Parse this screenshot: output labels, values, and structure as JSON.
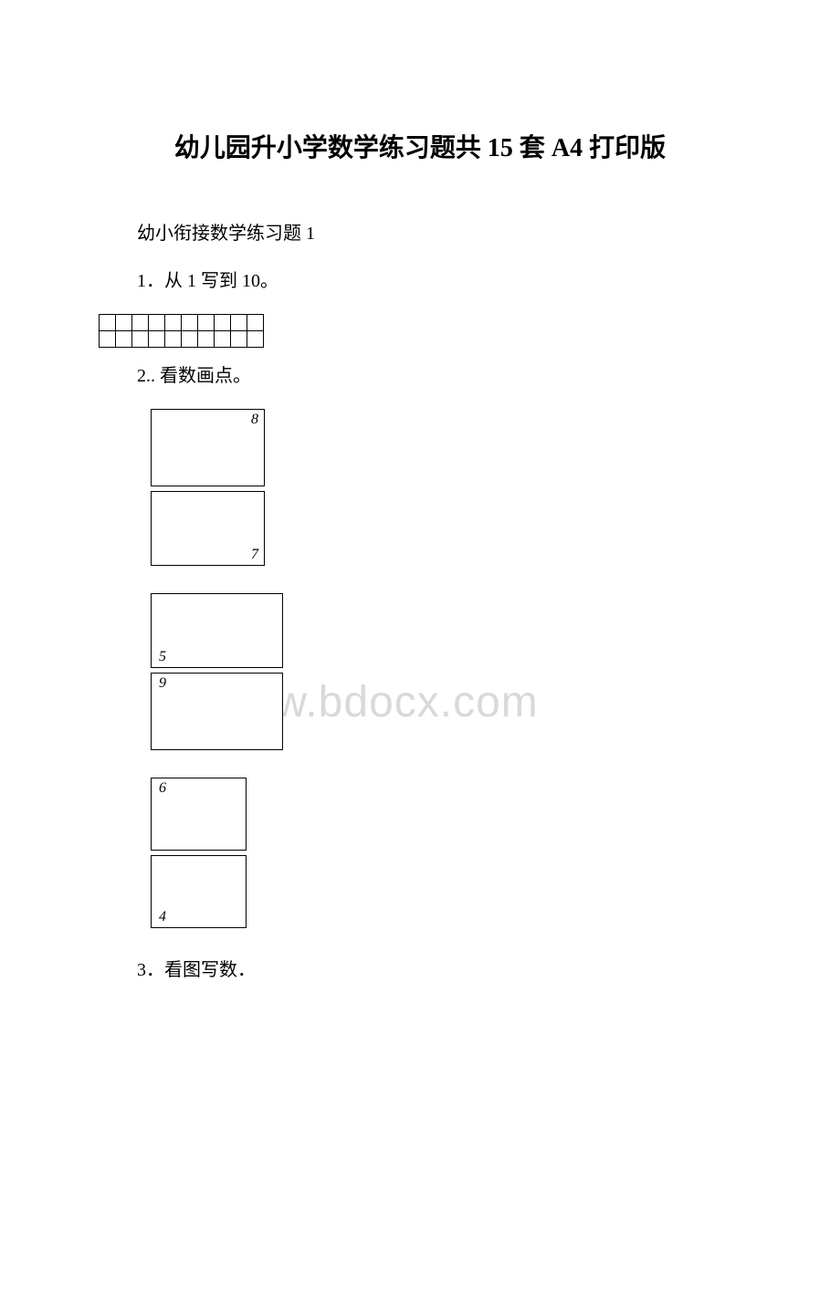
{
  "title": "幼儿园升小学数学练习题共 15 套 A4 打印版",
  "subtitle": "幼小衔接数学练习题 1",
  "q1": "1．从 1 写到 10。",
  "q2": "2.. 看数画点。",
  "q3": "3．看图写数．",
  "watermark": "www.bdocx.com",
  "boxes": {
    "b1": "8",
    "b2": "7",
    "b3": "5",
    "b4": "9",
    "b5": "6",
    "b6": "4"
  },
  "grid": {
    "rows": 2,
    "cols": 10
  },
  "colors": {
    "text": "#000000",
    "background": "#ffffff",
    "border": "#000000",
    "watermark": "#d9d9d9"
  }
}
